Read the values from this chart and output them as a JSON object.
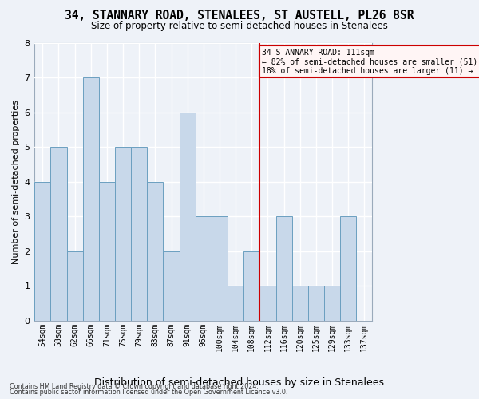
{
  "title": "34, STANNARY ROAD, STENALEES, ST AUSTELL, PL26 8SR",
  "subtitle": "Size of property relative to semi-detached houses in Stenalees",
  "xlabel": "Distribution of semi-detached houses by size in Stenalees",
  "ylabel": "Number of semi-detached properties",
  "categories": [
    "54sqm",
    "58sqm",
    "62sqm",
    "66sqm",
    "71sqm",
    "75sqm",
    "79sqm",
    "83sqm",
    "87sqm",
    "91sqm",
    "96sqm",
    "100sqm",
    "104sqm",
    "108sqm",
    "112sqm",
    "116sqm",
    "120sqm",
    "125sqm",
    "129sqm",
    "133sqm",
    "137sqm"
  ],
  "bar_values": [
    4,
    5,
    2,
    7,
    4,
    5,
    5,
    4,
    2,
    6,
    3,
    3,
    1,
    2,
    1,
    3,
    1,
    1,
    1,
    3,
    0
  ],
  "bar_color": "#c8d8ea",
  "bar_edgecolor": "#6b9fc0",
  "background_color": "#eef2f8",
  "plot_bg_color": "#eef2f8",
  "grid_color": "#ffffff",
  "subject_line_after_bin": 13,
  "subject_label": "34 STANNARY ROAD: 111sqm",
  "annotation_line1": "← 82% of semi-detached houses are smaller (51)",
  "annotation_line2": "18% of semi-detached houses are larger (11) →",
  "annotation_facecolor": "#fff5f5",
  "annotation_border_color": "#cc0000",
  "vline_color": "#cc0000",
  "footer1": "Contains HM Land Registry data © Crown copyright and database right 2024.",
  "footer2": "Contains public sector information licensed under the Open Government Licence v3.0.",
  "ylim": [
    0,
    8
  ],
  "yticks": [
    0,
    1,
    2,
    3,
    4,
    5,
    6,
    7,
    8
  ]
}
